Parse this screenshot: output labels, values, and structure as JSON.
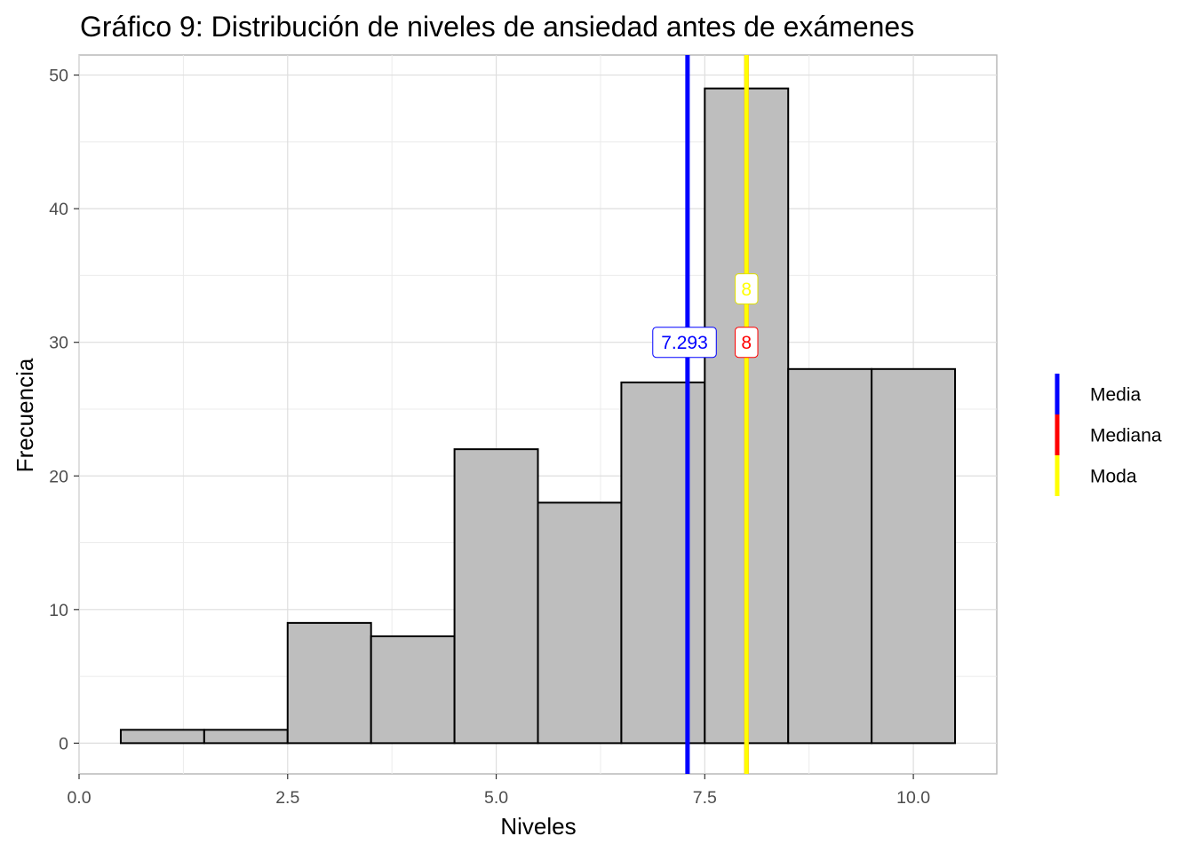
{
  "chart_data": {
    "type": "bar",
    "title": "Gráfico 9: Distribución de niveles de ansiedad antes de exámenes",
    "xlabel": "Niveles",
    "ylabel": "Frecuencia",
    "xlim": [
      0,
      11
    ],
    "ylim": [
      -2.3,
      51.5
    ],
    "x_ticks": [
      0,
      2.5,
      5,
      7.5,
      10
    ],
    "x_tick_labels": [
      "0.0",
      "2.5",
      "5.0",
      "7.5",
      "10.0"
    ],
    "y_ticks": [
      0,
      10,
      20,
      30,
      40,
      50
    ],
    "y_tick_labels": [
      "0",
      "10",
      "20",
      "30",
      "40",
      "50"
    ],
    "grid": true,
    "bins": [
      {
        "x0": 0.5,
        "x1": 1.5,
        "count": 1
      },
      {
        "x0": 1.5,
        "x1": 2.5,
        "count": 1
      },
      {
        "x0": 2.5,
        "x1": 3.5,
        "count": 9
      },
      {
        "x0": 3.5,
        "x1": 4.5,
        "count": 8
      },
      {
        "x0": 4.5,
        "x1": 5.5,
        "count": 22
      },
      {
        "x0": 5.5,
        "x1": 6.5,
        "count": 18
      },
      {
        "x0": 6.5,
        "x1": 7.5,
        "count": 27
      },
      {
        "x0": 7.5,
        "x1": 8.5,
        "count": 49
      },
      {
        "x0": 8.5,
        "x1": 9.5,
        "count": 28
      },
      {
        "x0": 9.5,
        "x1": 10.5,
        "count": 28
      }
    ],
    "bar_fill": "#bebebe",
    "bar_stroke": "#000000",
    "reference_lines": [
      {
        "name": "Media",
        "x": 7.293,
        "color": "#0000ff",
        "label": "7.293",
        "label_y": 30
      },
      {
        "name": "Mediana",
        "x": 8,
        "color": "#ff0000",
        "label": "8",
        "label_y": 30
      },
      {
        "name": "Moda",
        "x": 8,
        "color": "#ffff00",
        "label": "8",
        "label_y": 34
      }
    ],
    "legend": {
      "placement": "right",
      "items": [
        {
          "label": "Media",
          "color": "#0000ff"
        },
        {
          "label": "Mediana",
          "color": "#ff0000"
        },
        {
          "label": "Moda",
          "color": "#ffff00"
        }
      ]
    }
  }
}
